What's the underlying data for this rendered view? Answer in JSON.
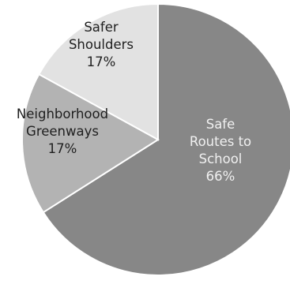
{
  "chart_data": {
    "type": "pie",
    "title": "",
    "start": "top",
    "direction": "clockwise",
    "legend": "none",
    "grid": false,
    "slices": [
      {
        "name": "Safe Routes to School",
        "value": 66,
        "label_lines": [
          "Safe",
          "Routes to",
          "School",
          "66%"
        ],
        "color": "#878787",
        "text_color": "#f0f0f0"
      },
      {
        "name": "Neighborhood Greenways",
        "value": 17,
        "label_lines": [
          "Neighborhood",
          "Greenways",
          "17%"
        ],
        "color": "#b3b3b3",
        "text_color": "#1f1f1f"
      },
      {
        "name": "Safer Shoulders",
        "value": 17,
        "label_lines": [
          "Safer",
          "Shoulders",
          "17%"
        ],
        "color": "#e2e2e2",
        "text_color": "#1f1f1f"
      }
    ]
  }
}
